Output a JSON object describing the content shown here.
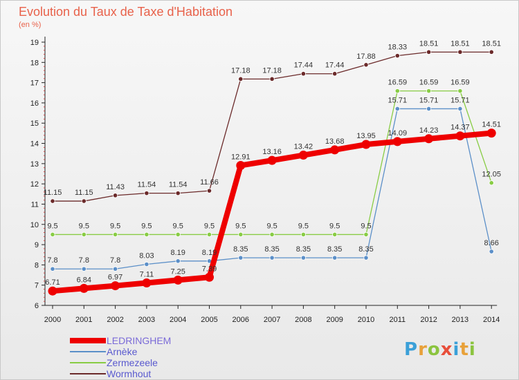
{
  "title": "Evolution du Taux de Taxe d'Habitation",
  "subtitle": "(en %)",
  "logo": {
    "letters": [
      "P",
      "r",
      "o",
      "x",
      "i",
      "t",
      "i"
    ],
    "colors": [
      "#3ba0d8",
      "#e8a13a",
      "#8bc43f",
      "#e84e3a",
      "#3ba0d8",
      "#e8a13a",
      "#8bc43f"
    ]
  },
  "chart_data": {
    "type": "line",
    "x": [
      "2000",
      "2001",
      "2002",
      "2003",
      "2004",
      "2005",
      "2006",
      "2007",
      "2008",
      "2009",
      "2010",
      "2011",
      "2012",
      "2013",
      "2014"
    ],
    "ylim": [
      6,
      19
    ],
    "yticks": [
      "6",
      "7",
      "8",
      "9",
      "10",
      "11",
      "12",
      "13",
      "14",
      "15",
      "16",
      "17",
      "18",
      "19"
    ],
    "grid": false,
    "legend": "bottom-left",
    "series": [
      {
        "name": "LEDRINGHEM",
        "color": "#ee0000",
        "values": [
          6.71,
          6.84,
          6.97,
          7.11,
          7.25,
          7.39,
          12.91,
          13.16,
          13.42,
          13.68,
          13.95,
          14.09,
          14.23,
          14.37,
          14.51
        ],
        "labels": [
          "6.71",
          "6.84",
          "6.97",
          "7.11",
          "7.25",
          "7.39",
          "12.91",
          "13.16",
          "13.42",
          "13.68",
          "13.95",
          "14.09",
          "14.23",
          "14.37",
          "14.51"
        ]
      },
      {
        "name": "Arnèke",
        "color": "#5b8fc8",
        "values": [
          7.8,
          7.8,
          7.8,
          8.03,
          8.19,
          8.19,
          8.35,
          8.35,
          8.35,
          8.35,
          8.35,
          15.71,
          15.71,
          15.71,
          8.66
        ],
        "labels": [
          "7.8",
          "7.8",
          "7.8",
          "8.03",
          "8.19",
          "8.19",
          "8.35",
          "8.35",
          "8.35",
          "8.35",
          "8.35",
          "15.71",
          "15.71",
          "15.71",
          "8.66"
        ]
      },
      {
        "name": "Zermezeele",
        "color": "#88cc44",
        "values": [
          9.5,
          9.5,
          9.5,
          9.5,
          9.5,
          9.5,
          9.5,
          9.5,
          9.5,
          9.5,
          9.5,
          16.59,
          16.59,
          16.59,
          12.05
        ],
        "labels": [
          "9.5",
          "9.5",
          "9.5",
          "9.5",
          "9.5",
          "9.5",
          "9.5",
          "9.5",
          "9.5",
          "9.5",
          "9.5",
          "16.59",
          "16.59",
          "16.59",
          "12.05"
        ]
      },
      {
        "name": "Wormhout",
        "color": "#6b2a2a",
        "values": [
          11.15,
          11.15,
          11.43,
          11.54,
          11.54,
          11.66,
          17.18,
          17.18,
          17.44,
          17.44,
          17.88,
          18.33,
          18.51,
          18.51,
          18.51
        ],
        "labels": [
          "11.15",
          "11.15",
          "11.43",
          "11.54",
          "11.54",
          "11.66",
          "17.18",
          "17.18",
          "17.44",
          "17.44",
          "17.88",
          "18.33",
          "18.51",
          "18.51",
          "18.51"
        ]
      }
    ]
  }
}
